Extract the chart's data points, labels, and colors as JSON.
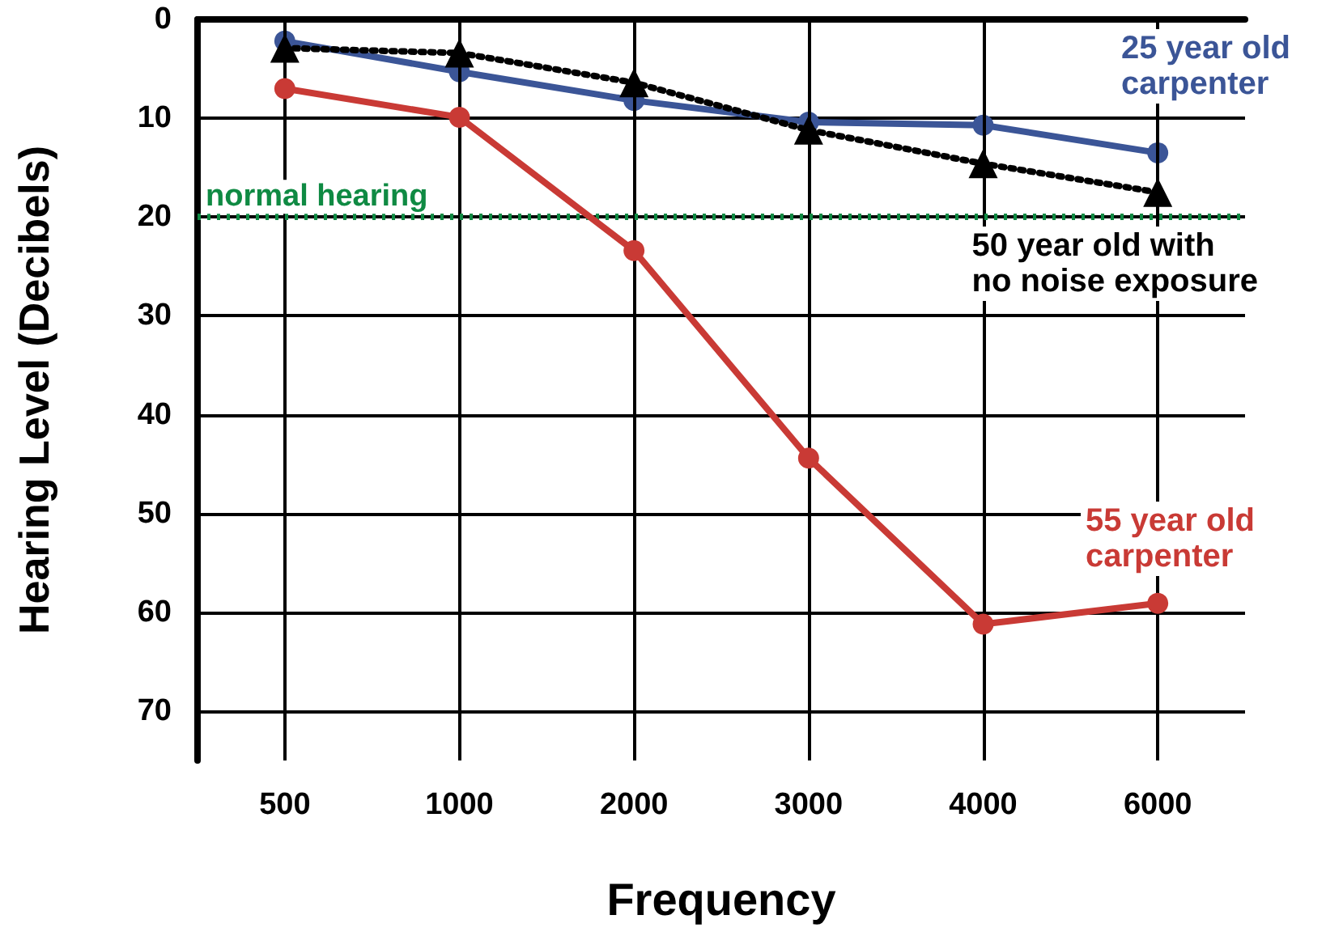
{
  "chart_data": {
    "type": "line",
    "xlabel": "Frequency",
    "ylabel": "Hearing Level (Decibels)",
    "categories": [
      "500",
      "1000",
      "2000",
      "3000",
      "4000",
      "6000"
    ],
    "ylim": [
      75,
      0
    ],
    "yticks": [
      0,
      10,
      20,
      30,
      40,
      50,
      60,
      70
    ],
    "grid": true,
    "legend": false,
    "series": [
      {
        "name": "25 year old carpenter",
        "color": "#3b5597",
        "marker": "circle",
        "line_style": "solid",
        "values": [
          2.2,
          5.3,
          8.2,
          10.4,
          10.7,
          13.5
        ]
      },
      {
        "name": "50 year old with no noise exposure",
        "color": "#000000",
        "marker": "triangle",
        "line_style": "dotted",
        "values": [
          2.9,
          3.4,
          6.4,
          11.2,
          14.6,
          17.5
        ]
      },
      {
        "name": "55 year old carpenter",
        "color": "#c93a35",
        "marker": "circle",
        "line_style": "solid",
        "values": [
          7,
          9.9,
          23.4,
          44.4,
          61.2,
          59.1
        ]
      }
    ],
    "ref_lines": [
      {
        "axis": "y",
        "value": 20,
        "label": "normal hearing",
        "color": "#0f8a43",
        "line_style": "dotted"
      }
    ]
  }
}
